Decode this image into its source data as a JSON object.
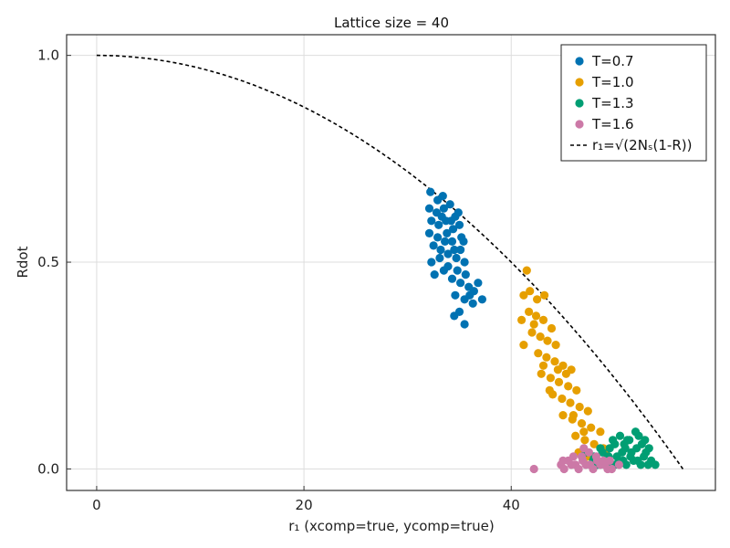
{
  "chart_data": {
    "type": "scatter",
    "title": "Lattice size = 40",
    "xlabel": "r₁ (xcomp=true, ycomp=true)",
    "ylabel": "Rdot",
    "xlim": [
      -2.9,
      59.7
    ],
    "ylim": [
      -0.052,
      1.05
    ],
    "xticks": [
      0,
      20,
      40
    ],
    "xtick_labels": [
      "0",
      "20",
      "40"
    ],
    "yticks": [
      0.0,
      0.5,
      1.0
    ],
    "ytick_labels": [
      "0.0",
      "0.5",
      "1.0"
    ],
    "grid": true,
    "legend_position": "top-right",
    "series": [
      {
        "name": "T=0.7",
        "color": "#0072b2",
        "points": [
          [
            32.2,
            0.67
          ],
          [
            32.9,
            0.65
          ],
          [
            33.4,
            0.66
          ],
          [
            34.1,
            0.64
          ],
          [
            34.6,
            0.61
          ],
          [
            32.1,
            0.63
          ],
          [
            32.8,
            0.62
          ],
          [
            33.5,
            0.63
          ],
          [
            34.2,
            0.6
          ],
          [
            35.0,
            0.59
          ],
          [
            32.3,
            0.6
          ],
          [
            33.0,
            0.59
          ],
          [
            33.7,
            0.6
          ],
          [
            34.4,
            0.58
          ],
          [
            35.2,
            0.56
          ],
          [
            32.1,
            0.57
          ],
          [
            32.9,
            0.56
          ],
          [
            33.6,
            0.55
          ],
          [
            34.3,
            0.55
          ],
          [
            35.1,
            0.53
          ],
          [
            32.5,
            0.54
          ],
          [
            33.2,
            0.53
          ],
          [
            33.9,
            0.52
          ],
          [
            34.7,
            0.51
          ],
          [
            35.5,
            0.5
          ],
          [
            32.3,
            0.5
          ],
          [
            33.1,
            0.51
          ],
          [
            33.9,
            0.49
          ],
          [
            34.8,
            0.48
          ],
          [
            35.6,
            0.47
          ],
          [
            33.5,
            0.48
          ],
          [
            34.3,
            0.46
          ],
          [
            35.1,
            0.45
          ],
          [
            35.9,
            0.44
          ],
          [
            36.4,
            0.43
          ],
          [
            34.6,
            0.42
          ],
          [
            35.5,
            0.41
          ],
          [
            36.3,
            0.4
          ],
          [
            37.2,
            0.41
          ],
          [
            35.0,
            0.38
          ],
          [
            36.0,
            0.42
          ],
          [
            35.5,
            0.35
          ],
          [
            34.5,
            0.37
          ],
          [
            36.8,
            0.45
          ],
          [
            32.6,
            0.47
          ],
          [
            33.3,
            0.61
          ],
          [
            34.9,
            0.62
          ],
          [
            33.8,
            0.57
          ],
          [
            34.5,
            0.53
          ],
          [
            35.4,
            0.55
          ]
        ]
      },
      {
        "name": "T=1.0",
        "color": "#e69f00",
        "points": [
          [
            41.5,
            0.48
          ],
          [
            41.2,
            0.42
          ],
          [
            41.8,
            0.43
          ],
          [
            42.5,
            0.41
          ],
          [
            43.2,
            0.42
          ],
          [
            41.0,
            0.36
          ],
          [
            41.7,
            0.38
          ],
          [
            42.4,
            0.37
          ],
          [
            43.1,
            0.36
          ],
          [
            43.9,
            0.34
          ],
          [
            42.0,
            0.33
          ],
          [
            42.8,
            0.32
          ],
          [
            43.5,
            0.31
          ],
          [
            44.3,
            0.3
          ],
          [
            41.2,
            0.3
          ],
          [
            42.6,
            0.28
          ],
          [
            43.4,
            0.27
          ],
          [
            44.2,
            0.26
          ],
          [
            45.0,
            0.25
          ],
          [
            45.8,
            0.24
          ],
          [
            42.9,
            0.23
          ],
          [
            43.8,
            0.22
          ],
          [
            44.6,
            0.21
          ],
          [
            45.5,
            0.2
          ],
          [
            46.3,
            0.19
          ],
          [
            44.0,
            0.18
          ],
          [
            44.9,
            0.17
          ],
          [
            45.7,
            0.16
          ],
          [
            46.6,
            0.15
          ],
          [
            47.4,
            0.14
          ],
          [
            45.0,
            0.13
          ],
          [
            45.9,
            0.12
          ],
          [
            46.8,
            0.11
          ],
          [
            47.7,
            0.1
          ],
          [
            48.6,
            0.09
          ],
          [
            46.2,
            0.08
          ],
          [
            47.1,
            0.07
          ],
          [
            48.0,
            0.06
          ],
          [
            48.9,
            0.05
          ],
          [
            46.5,
            0.04
          ],
          [
            47.3,
            0.03
          ],
          [
            48.2,
            0.02
          ],
          [
            49.1,
            0.04
          ],
          [
            43.1,
            0.25
          ],
          [
            44.5,
            0.24
          ],
          [
            45.3,
            0.23
          ],
          [
            46.0,
            0.13
          ],
          [
            47.0,
            0.09
          ],
          [
            43.7,
            0.19
          ],
          [
            42.2,
            0.35
          ]
        ]
      },
      {
        "name": "T=1.3",
        "color": "#009e73",
        "points": [
          [
            47.2,
            0.04
          ],
          [
            47.9,
            0.02
          ],
          [
            48.6,
            0.05
          ],
          [
            49.3,
            0.03
          ],
          [
            50.0,
            0.06
          ],
          [
            50.7,
            0.04
          ],
          [
            51.4,
            0.07
          ],
          [
            52.1,
            0.05
          ],
          [
            52.8,
            0.03
          ],
          [
            53.5,
            0.02
          ],
          [
            48.3,
            0.01
          ],
          [
            49.0,
            0.02
          ],
          [
            49.7,
            0.01
          ],
          [
            50.4,
            0.02
          ],
          [
            51.1,
            0.01
          ],
          [
            51.8,
            0.02
          ],
          [
            52.5,
            0.01
          ],
          [
            53.2,
            0.01
          ],
          [
            53.9,
            0.01
          ],
          [
            48.8,
            0.04
          ],
          [
            49.5,
            0.05
          ],
          [
            50.2,
            0.03
          ],
          [
            50.9,
            0.06
          ],
          [
            51.6,
            0.04
          ],
          [
            52.3,
            0.08
          ],
          [
            53.0,
            0.04
          ],
          [
            50.5,
            0.08
          ],
          [
            51.2,
            0.07
          ],
          [
            52.0,
            0.09
          ],
          [
            49.8,
            0.07
          ],
          [
            50.8,
            0.02
          ],
          [
            51.5,
            0.03
          ],
          [
            52.2,
            0.02
          ],
          [
            49.4,
            0.03
          ],
          [
            48.0,
            0.03
          ],
          [
            52.6,
            0.06
          ],
          [
            53.3,
            0.05
          ],
          [
            50.0,
            0.01
          ],
          [
            51.0,
            0.05
          ],
          [
            52.9,
            0.07
          ]
        ]
      },
      {
        "name": "T=1.6",
        "color": "#cc79a7",
        "points": [
          [
            42.2,
            0.0
          ],
          [
            44.8,
            0.01
          ],
          [
            45.5,
            0.02
          ],
          [
            46.2,
            0.01
          ],
          [
            46.9,
            0.02
          ],
          [
            47.6,
            0.01
          ],
          [
            48.3,
            0.02
          ],
          [
            49.0,
            0.01
          ],
          [
            49.7,
            0.0
          ],
          [
            50.4,
            0.01
          ],
          [
            45.1,
            0.0
          ],
          [
            45.8,
            0.01
          ],
          [
            46.5,
            0.0
          ],
          [
            47.2,
            0.01
          ],
          [
            47.9,
            0.0
          ],
          [
            48.6,
            0.01
          ],
          [
            49.3,
            0.0
          ],
          [
            46.8,
            0.03
          ],
          [
            47.5,
            0.04
          ],
          [
            48.2,
            0.03
          ],
          [
            46.0,
            0.03
          ],
          [
            48.9,
            0.02
          ],
          [
            45.0,
            0.02
          ],
          [
            47.0,
            0.05
          ],
          [
            49.5,
            0.02
          ]
        ]
      }
    ],
    "curve": {
      "name": "r₁=√(2Nₛ(1-R))",
      "color": "#000000",
      "style": "dashed",
      "Ns": 1600
    }
  }
}
